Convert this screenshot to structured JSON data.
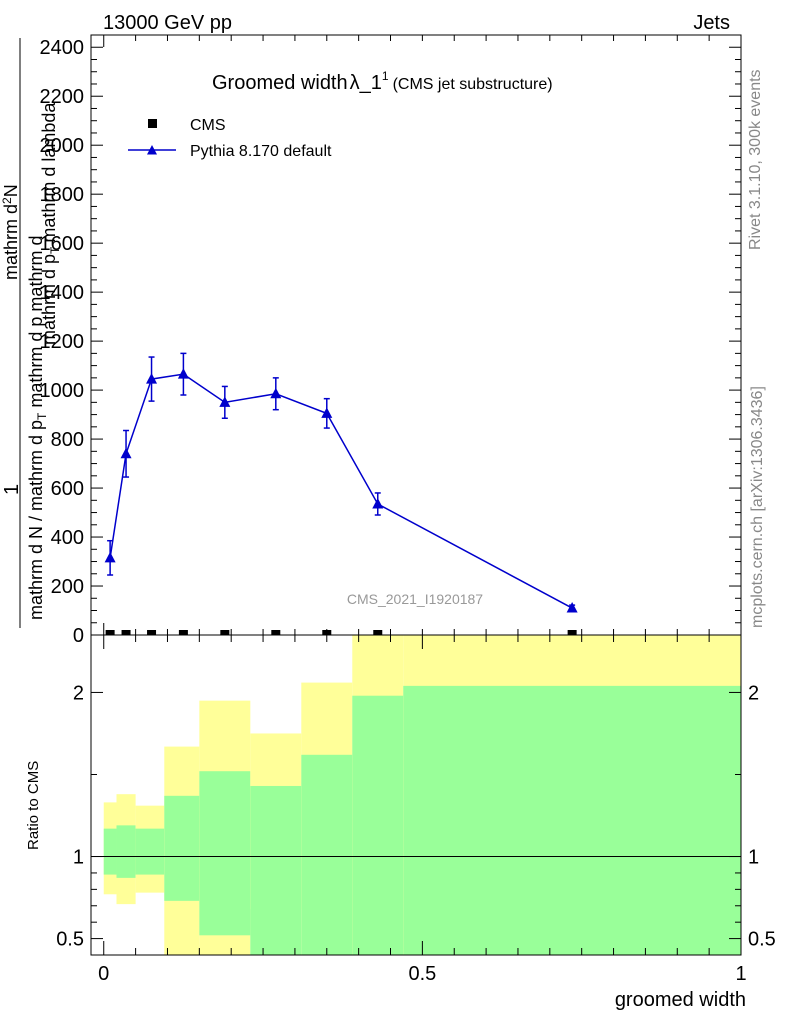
{
  "header": {
    "left": "13000 GeV pp",
    "right": "Jets",
    "side_rivet": "Rivet 3.1.10,  300k events",
    "side_mcplots": "mcplots.cern.ch [arXiv:1306.3436]"
  },
  "chart_data": {
    "type": "line",
    "title_main": "Groomed width",
    "title_symbol": "λ_1",
    "title_sup": "1",
    "title_sub": "(CMS jet substructure)",
    "analysis_id": "CMS_2021_I1920187",
    "ylabel_main": {
      "line1": "1",
      "line2_num": "mathrm d",
      "line2_sup": "2",
      "line2_rest": "N",
      "line3": "mathrm d N / mathrm d p",
      "line3_sub": "T",
      "line4": "mathrm d p",
      "line4_sub": "T",
      "line4_rest": "mathrm d lambda"
    },
    "ylabel_ratio": "Ratio to CMS",
    "xlabel": "groomed width",
    "xlim": [
      -0.02,
      1.0
    ],
    "ylim_main": [
      0,
      2450
    ],
    "ylim_ratio": [
      0.4,
      2.35
    ],
    "y_ticks_main": [
      "0",
      "200",
      "400",
      "600",
      "800",
      "1000",
      "1200",
      "1400",
      "1600",
      "1800",
      "2000",
      "2200",
      "2400"
    ],
    "y_ticks_ratio": [
      "0.5",
      "1",
      "2"
    ],
    "x_ticks": [
      "0",
      "0.5",
      "1"
    ],
    "legend": [
      {
        "label": "CMS",
        "marker": "square",
        "color": "#000000"
      },
      {
        "label": "Pythia 8.170 default",
        "marker": "triangle",
        "color": "#0000cc"
      }
    ],
    "series": [
      {
        "name": "CMS",
        "x": [
          0.01,
          0.035,
          0.075,
          0.125,
          0.19,
          0.27,
          0.35,
          0.43,
          0.735
        ],
        "y": [
          2,
          2,
          2,
          2,
          2,
          2,
          2,
          2,
          2
        ]
      },
      {
        "name": "Pythia 8.170 default",
        "x": [
          0.01,
          0.035,
          0.075,
          0.125,
          0.19,
          0.27,
          0.35,
          0.43,
          0.735
        ],
        "y": [
          315,
          740,
          1045,
          1065,
          950,
          985,
          905,
          535,
          110
        ],
        "yerr": [
          70,
          95,
          90,
          85,
          65,
          65,
          60,
          45,
          12
        ]
      }
    ],
    "ratio_bands": {
      "edges": [
        0.0,
        0.02,
        0.05,
        0.095,
        0.15,
        0.23,
        0.31,
        0.39,
        0.47,
        1.0
      ],
      "green_low": [
        0.89,
        0.87,
        0.89,
        0.73,
        0.52,
        0.4,
        0.3,
        0.3,
        0.3
      ],
      "green_high": [
        1.17,
        1.19,
        1.17,
        1.37,
        1.52,
        1.43,
        1.62,
        1.98,
        2.04
      ],
      "yellow_low": [
        0.77,
        0.71,
        0.78,
        0.4,
        0.4,
        0.68,
        0.3,
        0.3,
        0.3
      ],
      "yellow_high": [
        1.33,
        1.38,
        1.31,
        1.67,
        1.95,
        1.75,
        2.06,
        2.4,
        2.4
      ],
      "green_color": "#99ff99",
      "yellow_color": "#ffff99"
    },
    "pythia_color": "#0000cc"
  }
}
